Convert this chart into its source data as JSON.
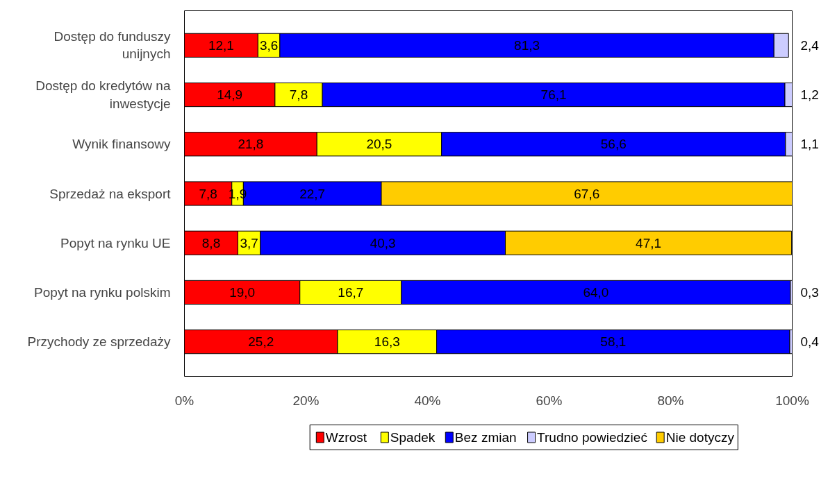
{
  "chart_data": {
    "type": "bar",
    "orientation": "horizontal",
    "stacked": true,
    "categories": [
      "Dostęp do funduszy unijnych",
      "Dostęp do kredytów na inwestycje",
      "Wynik finansowy",
      "Sprzedaż na eksport",
      "Popyt na rynku UE",
      "Popyt na rynku polskim",
      "Przychody ze sprzedaży"
    ],
    "series": [
      {
        "name": "Wzrost",
        "color": "#ff0000",
        "values": [
          12.1,
          14.9,
          21.8,
          7.8,
          8.8,
          19.0,
          25.2
        ],
        "value_labels": [
          "12,1",
          "14,9",
          "21,8",
          "7,8",
          "8,8",
          "19,0",
          "25,2"
        ]
      },
      {
        "name": "Spadek",
        "color": "#ffff00",
        "values": [
          3.6,
          7.8,
          20.5,
          1.9,
          3.7,
          16.7,
          16.3
        ],
        "value_labels": [
          "3,6",
          "7,8",
          "20,5",
          "1,9",
          "3,7",
          "16,7",
          "16,3"
        ]
      },
      {
        "name": "Bez zmian",
        "color": "#0000ff",
        "values": [
          81.3,
          76.1,
          56.6,
          22.7,
          40.3,
          64.0,
          58.1
        ],
        "value_labels": [
          "81,3",
          "76,1",
          "56,6",
          "22,7",
          "40,3",
          "64,0",
          "58,1"
        ]
      },
      {
        "name": "Trudno powiedzieć",
        "color": "#ccccff",
        "values": [
          2.4,
          1.2,
          1.1,
          null,
          null,
          0.3,
          0.4
        ],
        "value_labels": [
          "2,4",
          "1,2",
          "1,1",
          null,
          null,
          "0,3",
          "0,4"
        ]
      },
      {
        "name": "Nie dotyczy",
        "color": "#ffcc00",
        "values": [
          null,
          null,
          null,
          67.6,
          47.1,
          null,
          null
        ],
        "value_labels": [
          null,
          null,
          null,
          "67,6",
          "47,1",
          null,
          null
        ]
      }
    ],
    "xlim": [
      0,
      100
    ],
    "xticks": [
      {
        "value": 0,
        "label": "0%"
      },
      {
        "value": 20,
        "label": "20%"
      },
      {
        "value": 40,
        "label": "40%"
      },
      {
        "value": 60,
        "label": "60%"
      },
      {
        "value": 80,
        "label": "80%"
      },
      {
        "value": 100,
        "label": "100%"
      }
    ],
    "grid": false,
    "legend": "bottom"
  }
}
